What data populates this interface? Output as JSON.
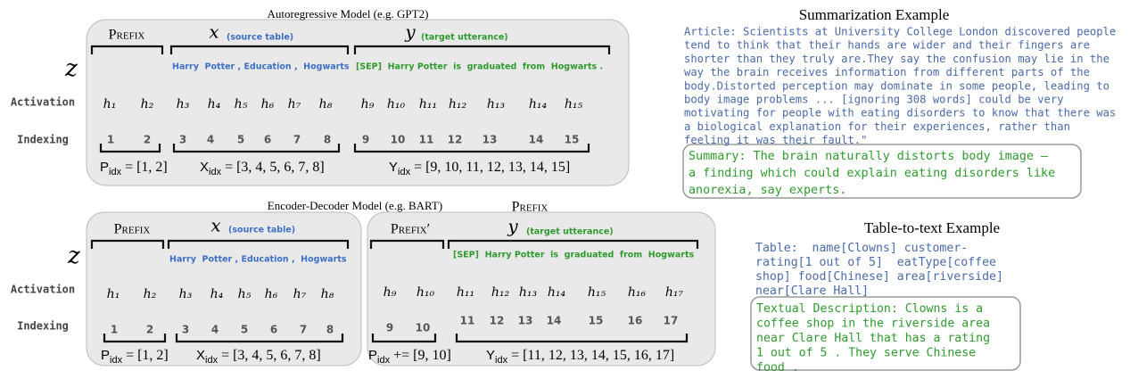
{
  "autoregressive": {
    "title": "Autoregressive Model (e.g. GPT2)",
    "row_labels": [
      "z",
      "Activation",
      "Indexing"
    ],
    "prefix_label": "Prefix",
    "x_label": "x",
    "x_note": "(source table)",
    "y_label": "y",
    "y_note": "(target utterance)",
    "source_tokens": "Harry  Potter , Education ,  Hogwarts",
    "target_tokens": "[SEP]  Harry Potter  is  graduated  from  Hogwarts .",
    "activations": [
      "h₁",
      "h₂",
      "h₃",
      "h₄",
      "h₅",
      "h₆",
      "h₇",
      "h₈",
      "h₉",
      "h₁₀",
      "h₁₁",
      "h₁₂",
      "h₁₃",
      "h₁₄",
      "h₁₅"
    ],
    "indices": [
      1,
      2,
      3,
      4,
      5,
      6,
      7,
      8,
      9,
      10,
      11,
      12,
      13,
      14,
      15
    ],
    "prefix_index": {
      "symbol": "P",
      "sub": "idx",
      "value": "= [1, 2]"
    },
    "x_index": {
      "symbol": "X",
      "sub": "idx",
      "value": "= [3, 4, 5, 6, 7, 8]"
    },
    "y_index": {
      "symbol": "Y",
      "sub": "idx",
      "value": "= [9, 10, 11, 12, 13, 14, 15]"
    }
  },
  "encoder_decoder": {
    "title": "Encoder-Decoder Model (e.g. BART)",
    "outer_prefix_label": "Prefix",
    "row_labels": [
      "z",
      "Activation",
      "Indexing"
    ],
    "encoder": {
      "prefix_label": "Prefix",
      "x_label": "x",
      "x_note": "(source table)",
      "source_tokens": "Harry  Potter , Education ,  Hogwarts",
      "activations": [
        "h₁",
        "h₂",
        "h₃",
        "h₄",
        "h₅",
        "h₆",
        "h₇",
        "h₈"
      ],
      "indices": [
        1,
        2,
        3,
        4,
        5,
        6,
        7,
        8
      ],
      "prefix_index": {
        "symbol": "P",
        "sub": "idx",
        "value": "= [1, 2]"
      },
      "x_index": {
        "symbol": "X",
        "sub": "idx",
        "value": "= [3, 4, 5, 6, 7, 8]"
      }
    },
    "decoder": {
      "prefix_label": "Prefix′",
      "y_label": "y",
      "y_note": "(target utterance)",
      "target_tokens": "[SEP]  Harry Potter  is  graduated  from  Hogwarts",
      "activations": [
        "h₉",
        "h₁₀",
        "h₁₁",
        "h₁₂",
        "h₁₃",
        "h₁₄",
        "h₁₅",
        "h₁₆",
        "h₁₇"
      ],
      "indices": [
        9,
        10,
        11,
        12,
        13,
        14,
        15,
        16,
        17
      ],
      "prefix_index": {
        "symbol": "P",
        "sub": "idx",
        "value": "+= [9, 10]"
      },
      "y_index": {
        "symbol": "Y",
        "sub": "idx",
        "value": "= [11, 12, 13, 14, 15, 16, 17]"
      }
    }
  },
  "summarization": {
    "title": "Summarization Example",
    "article_lines": [
      "Article: Scientists at University College London discovered people",
      "tend to think that their hands are wider and their fingers are",
      "shorter than they truly are.They say the confusion may lie in the",
      "way the brain receives information from different parts of the",
      "body.Distorted perception may dominate in some people, leading to",
      "body image problems ... [ignoring 308 words] could be very",
      "motivating for people with eating disorders to know that there was",
      "a biological explanation for their experiences, rather than",
      "feeling it was their fault.\""
    ],
    "summary_lines": [
      "Summary: The brain naturally distorts body image –",
      "a finding which could explain eating disorders like",
      "anorexia, say experts."
    ]
  },
  "table_to_text": {
    "title": "Table-to-text Example",
    "table_lines": [
      "Table:  name[Clowns] customer-",
      "rating[1 out of 5]  eatType[coffee",
      "shop] food[Chinese] area[riverside]",
      "near[Clare Hall]"
    ],
    "description_lines": [
      "Textual Description: Clowns is a",
      "coffee shop in the riverside area",
      "near Clare Hall that has a rating",
      "1 out of 5 . They serve Chinese",
      "food ."
    ]
  }
}
